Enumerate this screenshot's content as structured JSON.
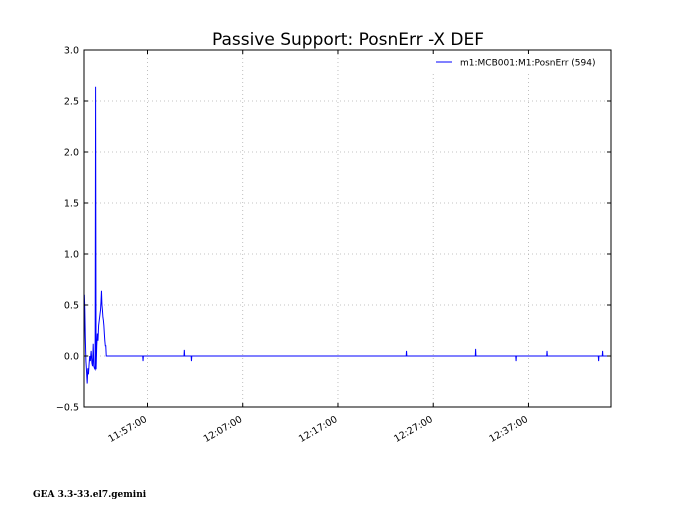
{
  "chart_data": {
    "type": "line",
    "title": "Passive Support:  PosnErr -X DEF",
    "xlabel": "",
    "ylabel": "",
    "x_time_range": [
      "11:50:20",
      "12:45:40"
    ],
    "ylim": [
      -0.5,
      3.0
    ],
    "x_ticks": [
      "11:57:00",
      "12:07:00",
      "12:17:00",
      "12:27:00",
      "12:37:00"
    ],
    "y_ticks": [
      "3.0",
      "2.5",
      "2.0",
      "1.5",
      "1.0",
      "0.5",
      "0.0",
      "−0.5"
    ],
    "grid": true,
    "legend_position": "top-right",
    "series": [
      {
        "name": "m1:MCB001:M1:PosnErr (594)",
        "color": "#0000ff",
        "points": [
          [
            "11:50:20",
            0.0
          ],
          [
            "11:50:22",
            0.6
          ],
          [
            "11:50:25",
            0.45
          ],
          [
            "11:50:28",
            0.18
          ],
          [
            "11:50:32",
            -0.05
          ],
          [
            "11:50:36",
            -0.15
          ],
          [
            "11:50:40",
            -0.27
          ],
          [
            "11:50:44",
            -0.12
          ],
          [
            "11:50:48",
            -0.18
          ],
          [
            "11:50:52",
            -0.08
          ],
          [
            "11:50:56",
            0.0
          ],
          [
            "11:51:00",
            -0.05
          ],
          [
            "11:51:05",
            0.05
          ],
          [
            "11:51:10",
            -0.07
          ],
          [
            "11:51:14",
            -0.1
          ],
          [
            "11:51:18",
            0.12
          ],
          [
            "11:51:22",
            -0.1
          ],
          [
            "11:51:26",
            -0.12
          ],
          [
            "11:51:30",
            -0.13
          ],
          [
            "11:51:33",
            2.64
          ],
          [
            "11:51:36",
            -0.13
          ],
          [
            "11:51:40",
            0.1
          ],
          [
            "11:51:44",
            0.22
          ],
          [
            "11:51:48",
            0.15
          ],
          [
            "11:51:52",
            0.3
          ],
          [
            "11:51:56",
            0.35
          ],
          [
            "11:52:00",
            0.4
          ],
          [
            "11:52:04",
            0.45
          ],
          [
            "11:52:07",
            0.53
          ],
          [
            "11:52:10",
            0.64
          ],
          [
            "11:52:13",
            0.5
          ],
          [
            "11:52:16",
            0.45
          ],
          [
            "11:52:19",
            0.38
          ],
          [
            "11:52:22",
            0.35
          ],
          [
            "11:52:25",
            0.3
          ],
          [
            "11:52:28",
            0.22
          ],
          [
            "11:52:31",
            0.15
          ],
          [
            "11:52:34",
            0.1
          ],
          [
            "11:52:37",
            0.1
          ],
          [
            "11:52:40",
            0.0
          ],
          [
            "11:56:30",
            0.0
          ],
          [
            "11:56:32",
            -0.05
          ],
          [
            "11:56:34",
            0.0
          ],
          [
            "12:00:50",
            0.0
          ],
          [
            "12:00:52",
            0.06
          ],
          [
            "12:00:54",
            0.0
          ],
          [
            "12:01:35",
            0.0
          ],
          [
            "12:01:37",
            -0.05
          ],
          [
            "12:01:39",
            0.0
          ],
          [
            "12:24:10",
            0.0
          ],
          [
            "12:24:12",
            0.05
          ],
          [
            "12:24:14",
            0.0
          ],
          [
            "12:31:25",
            0.0
          ],
          [
            "12:31:27",
            0.07
          ],
          [
            "12:31:29",
            0.0
          ],
          [
            "12:35:40",
            0.0
          ],
          [
            "12:35:42",
            -0.05
          ],
          [
            "12:35:44",
            0.0
          ],
          [
            "12:38:55",
            0.0
          ],
          [
            "12:38:57",
            0.05
          ],
          [
            "12:38:59",
            0.0
          ],
          [
            "12:44:20",
            0.0
          ],
          [
            "12:44:22",
            -0.05
          ],
          [
            "12:44:24",
            0.0
          ],
          [
            "12:44:45",
            0.0
          ],
          [
            "12:44:47",
            0.05
          ],
          [
            "12:44:49",
            0.0
          ],
          [
            "12:45:40",
            0.0
          ]
        ]
      }
    ]
  },
  "footer": "GEA 3.3-33.el7.gemini"
}
